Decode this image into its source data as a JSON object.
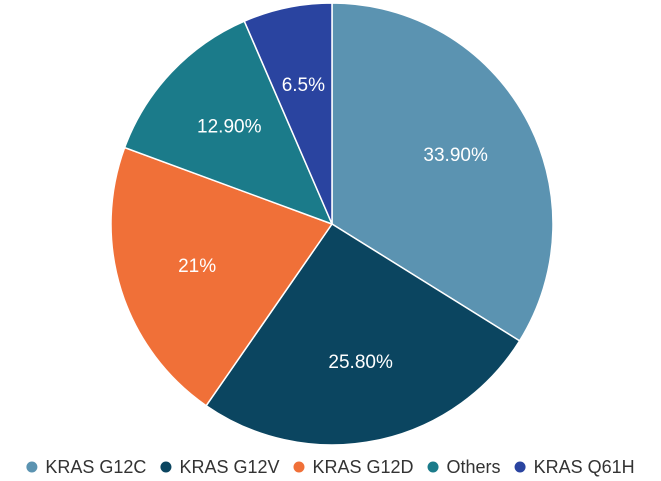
{
  "chart_data": {
    "type": "pie",
    "title": "",
    "start_angle_deg": -90,
    "direction": "clockwise",
    "legend_position": "bottom",
    "slices": [
      {
        "label": "KRAS G12C",
        "value": 33.9,
        "display": "33.90%",
        "color": "#5b93b1"
      },
      {
        "label": "KRAS G12V",
        "value": 25.8,
        "display": "25.80%",
        "color": "#0b4560"
      },
      {
        "label": "KRAS G12D",
        "value": 21.0,
        "display": "21%",
        "color": "#f07038"
      },
      {
        "label": "Others",
        "value": 12.9,
        "display": "12.90%",
        "color": "#1b7b8a"
      },
      {
        "label": "KRAS Q61H",
        "value": 6.5,
        "display": "6.5%",
        "color": "#2a44a0"
      }
    ]
  }
}
